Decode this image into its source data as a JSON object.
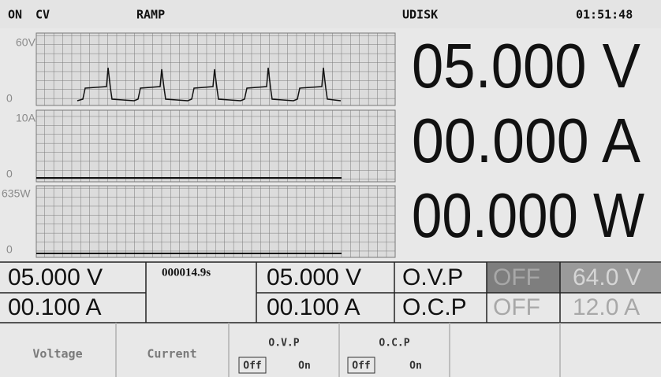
{
  "status_bar": {
    "output": "ON",
    "mode": "CV",
    "function": "RAMP",
    "storage": "UDISK",
    "time": "01:51:48"
  },
  "graphs": [
    {
      "max_label": "60V",
      "min_label": "0"
    },
    {
      "max_label": "10A",
      "min_label": "0"
    },
    {
      "max_label": "635W",
      "min_label": "0"
    }
  ],
  "readouts": {
    "voltage": "05.000 V",
    "current": "00.000 A",
    "power": "00.000 W"
  },
  "table": {
    "rows": [
      [
        "05.000 V",
        "000014.9s",
        "05.000 V",
        "O.V.P",
        "OFF",
        "64.0 V"
      ],
      [
        "00.100 A",
        "00.100 A",
        "O.C.P",
        "OFF",
        "12.0 A"
      ]
    ]
  },
  "softkeys": [
    {
      "label": "Voltage"
    },
    {
      "label": "Current"
    },
    {
      "label": "O.V.P",
      "options": [
        "Off",
        "On"
      ]
    },
    {
      "label": "O.C.P",
      "options": [
        "Off",
        "On"
      ]
    }
  ]
}
